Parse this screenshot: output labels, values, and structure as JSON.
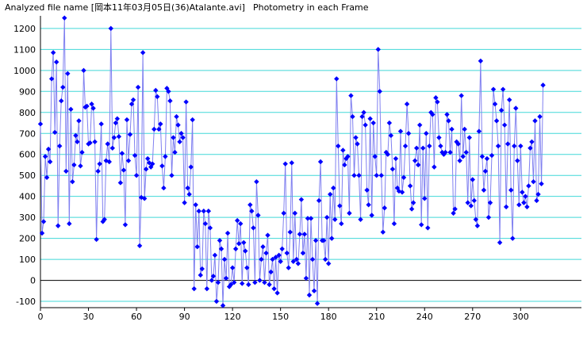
{
  "header": {
    "prefix": "Analyzed file name [",
    "filename": "岡本11年03月05日(36)Atalante.avi",
    "suffix": "]",
    "plot_title": "Photometry in each Frame"
  },
  "colors": {
    "background": "#ffffff",
    "gridline": "#40d8d8",
    "zero_line": "#000000",
    "axis": "#000000",
    "series_line": "#8080f0",
    "marker": "#0000ff"
  },
  "chart_data": {
    "type": "line",
    "title": "Photometry in each Frame",
    "xlabel": "",
    "ylabel": "",
    "xlim": [
      0,
      338
    ],
    "ylim": [
      -130,
      1260
    ],
    "x_ticks": [
      0,
      30,
      60,
      90,
      120,
      150,
      180,
      210,
      240,
      270,
      300
    ],
    "y_ticks": [
      -100,
      0,
      100,
      200,
      300,
      400,
      500,
      600,
      700,
      800,
      900,
      1000,
      1100,
      1200
    ],
    "grid": true,
    "legend": "none",
    "marker": "diamond",
    "x_start": 0,
    "x_step": 1,
    "values": [
      745,
      225,
      280,
      590,
      490,
      625,
      565,
      960,
      1085,
      705,
      1040,
      260,
      640,
      855,
      920,
      1250,
      520,
      985,
      270,
      815,
      470,
      550,
      690,
      660,
      760,
      545,
      610,
      1000,
      825,
      830,
      650,
      655,
      840,
      820,
      660,
      195,
      520,
      555,
      745,
      280,
      290,
      570,
      650,
      565,
      1200,
      630,
      680,
      750,
      770,
      685,
      465,
      605,
      525,
      265,
      765,
      570,
      695,
      840,
      860,
      595,
      500,
      920,
      165,
      395,
      1085,
      390,
      530,
      580,
      560,
      540,
      555,
      720,
      905,
      875,
      720,
      745,
      545,
      440,
      590,
      915,
      900,
      855,
      500,
      680,
      610,
      780,
      740,
      660,
      700,
      680,
      370,
      850,
      440,
      410,
      540,
      765,
      -40,
      360,
      160,
      330,
      25,
      55,
      330,
      270,
      -40,
      330,
      250,
      0,
      20,
      120,
      -100,
      -10,
      190,
      150,
      -120,
      100,
      10,
      225,
      -30,
      -20,
      60,
      -10,
      150,
      285,
      175,
      270,
      -15,
      180,
      140,
      60,
      -20,
      360,
      330,
      250,
      -10,
      470,
      310,
      0,
      100,
      160,
      -10,
      130,
      215,
      -20,
      40,
      100,
      -40,
      110,
      -60,
      120,
      90,
      150,
      320,
      555,
      130,
      60,
      230,
      560,
      90,
      320,
      100,
      80,
      220,
      385,
      130,
      220,
      10,
      295,
      -70,
      295,
      100,
      -50,
      190,
      -110,
      380,
      565,
      190,
      190,
      100,
      300,
      80,
      410,
      200,
      440,
      290,
      960,
      640,
      355,
      270,
      620,
      550,
      580,
      590,
      320,
      880,
      780,
      500,
      680,
      650,
      500,
      290,
      780,
      800,
      740,
      430,
      360,
      770,
      310,
      750,
      590,
      500,
      1100,
      900,
      500,
      230,
      345,
      610,
      600,
      750,
      690,
      530,
      270,
      580,
      440,
      425,
      710,
      420,
      490,
      640,
      840,
      700,
      450,
      340,
      370,
      570,
      630,
      550,
      740,
      265,
      630,
      390,
      700,
      250,
      640,
      800,
      790,
      540,
      870,
      850,
      680,
      640,
      610,
      600,
      610,
      790,
      760,
      610,
      720,
      320,
      340,
      660,
      650,
      570,
      880,
      590,
      720,
      610,
      370,
      680,
      355,
      480,
      380,
      290,
      260,
      710,
      1045,
      590,
      430,
      520,
      580,
      300,
      370,
      595,
      910,
      840,
      760,
      640,
      180,
      810,
      910,
      740,
      350,
      650,
      860,
      430,
      200,
      640,
      820,
      570,
      360,
      640,
      420,
      370,
      400,
      350,
      450,
      630,
      660,
      470,
      760,
      380,
      410,
      780,
      460,
      930
    ]
  }
}
